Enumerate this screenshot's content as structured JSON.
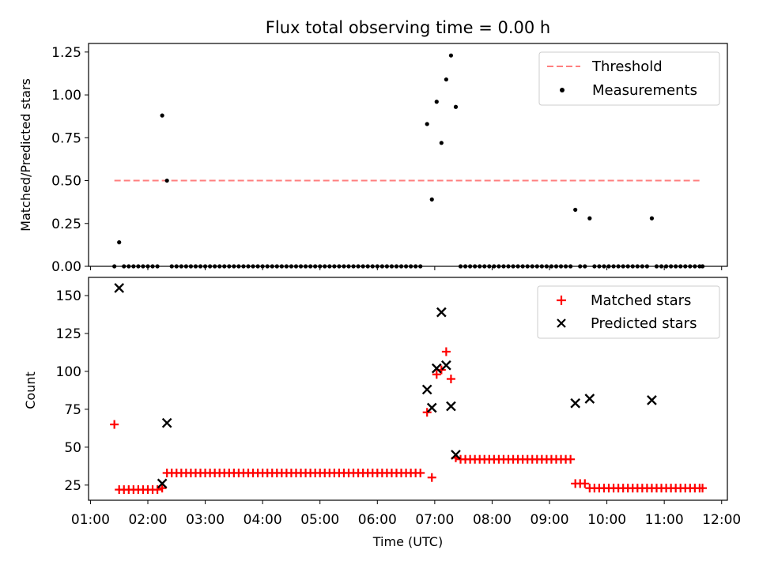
{
  "figure": {
    "title": "Flux total observing time = 0.00 h",
    "xlabel": "Time (UTC)",
    "xticks": [
      "01:00",
      "02:00",
      "03:00",
      "04:00",
      "05:00",
      "06:00",
      "07:00",
      "08:00",
      "09:00",
      "10:00",
      "11:00",
      "12:00"
    ],
    "colors": {
      "threshold": "#ff7f7f",
      "measurement": "#000000",
      "matched": "#ff0000",
      "predicted": "#000000"
    }
  },
  "chart_data": [
    {
      "type": "scatter",
      "title": "Flux total observing time = 0.00 h",
      "ylabel": "Matched/Predicted stars",
      "xlim": [
        "00:58",
        "12:06"
      ],
      "ylim": [
        0,
        1.3
      ],
      "yticks": [
        "0.00",
        "0.25",
        "0.50",
        "0.75",
        "1.00",
        "1.25"
      ],
      "legend_position": "top-right",
      "legend": [
        "Threshold",
        "Measurements"
      ],
      "threshold": {
        "name": "Threshold",
        "value": 0.5,
        "x": [
          "01:25",
          "11:40"
        ]
      },
      "measurements": {
        "name": "Measurements",
        "points": [
          [
            "01:25",
            0.0
          ],
          [
            "01:30",
            0.14
          ],
          [
            "01:35",
            0.0
          ],
          [
            "01:40",
            0.0
          ],
          [
            "01:45",
            0.0
          ],
          [
            "01:50",
            0.0
          ],
          [
            "01:55",
            0.0
          ],
          [
            "02:00",
            0.0
          ],
          [
            "02:05",
            0.0
          ],
          [
            "02:10",
            0.0
          ],
          [
            "02:15",
            0.88
          ],
          [
            "02:20",
            0.5
          ],
          [
            "02:25",
            0.0
          ],
          [
            "02:30",
            0.0
          ],
          [
            "02:35",
            0.0
          ],
          [
            "02:40",
            0.0
          ],
          [
            "02:45",
            0.0
          ],
          [
            "02:50",
            0.0
          ],
          [
            "02:55",
            0.0
          ],
          [
            "03:00",
            0.0
          ],
          [
            "03:05",
            0.0
          ],
          [
            "03:10",
            0.0
          ],
          [
            "03:15",
            0.0
          ],
          [
            "03:20",
            0.0
          ],
          [
            "03:25",
            0.0
          ],
          [
            "03:30",
            0.0
          ],
          [
            "03:35",
            0.0
          ],
          [
            "03:40",
            0.0
          ],
          [
            "03:45",
            0.0
          ],
          [
            "03:50",
            0.0
          ],
          [
            "03:55",
            0.0
          ],
          [
            "04:00",
            0.0
          ],
          [
            "04:05",
            0.0
          ],
          [
            "04:10",
            0.0
          ],
          [
            "04:15",
            0.0
          ],
          [
            "04:20",
            0.0
          ],
          [
            "04:25",
            0.0
          ],
          [
            "04:30",
            0.0
          ],
          [
            "04:35",
            0.0
          ],
          [
            "04:40",
            0.0
          ],
          [
            "04:45",
            0.0
          ],
          [
            "04:50",
            0.0
          ],
          [
            "04:55",
            0.0
          ],
          [
            "05:00",
            0.0
          ],
          [
            "05:05",
            0.0
          ],
          [
            "05:10",
            0.0
          ],
          [
            "05:15",
            0.0
          ],
          [
            "05:20",
            0.0
          ],
          [
            "05:25",
            0.0
          ],
          [
            "05:30",
            0.0
          ],
          [
            "05:35",
            0.0
          ],
          [
            "05:40",
            0.0
          ],
          [
            "05:45",
            0.0
          ],
          [
            "05:50",
            0.0
          ],
          [
            "05:55",
            0.0
          ],
          [
            "06:00",
            0.0
          ],
          [
            "06:05",
            0.0
          ],
          [
            "06:10",
            0.0
          ],
          [
            "06:15",
            0.0
          ],
          [
            "06:20",
            0.0
          ],
          [
            "06:25",
            0.0
          ],
          [
            "06:30",
            0.0
          ],
          [
            "06:35",
            0.0
          ],
          [
            "06:40",
            0.0
          ],
          [
            "06:45",
            0.0
          ],
          [
            "06:52",
            0.83
          ],
          [
            "06:57",
            0.39
          ],
          [
            "07:02",
            0.96
          ],
          [
            "07:07",
            0.72
          ],
          [
            "07:12",
            1.09
          ],
          [
            "07:17",
            1.23
          ],
          [
            "07:22",
            0.93
          ],
          [
            "07:27",
            0.0
          ],
          [
            "07:32",
            0.0
          ],
          [
            "07:37",
            0.0
          ],
          [
            "07:42",
            0.0
          ],
          [
            "07:47",
            0.0
          ],
          [
            "07:52",
            0.0
          ],
          [
            "07:57",
            0.0
          ],
          [
            "08:02",
            0.0
          ],
          [
            "08:07",
            0.0
          ],
          [
            "08:12",
            0.0
          ],
          [
            "08:17",
            0.0
          ],
          [
            "08:22",
            0.0
          ],
          [
            "08:27",
            0.0
          ],
          [
            "08:32",
            0.0
          ],
          [
            "08:37",
            0.0
          ],
          [
            "08:42",
            0.0
          ],
          [
            "08:47",
            0.0
          ],
          [
            "08:52",
            0.0
          ],
          [
            "08:57",
            0.0
          ],
          [
            "09:02",
            0.0
          ],
          [
            "09:07",
            0.0
          ],
          [
            "09:12",
            0.0
          ],
          [
            "09:17",
            0.0
          ],
          [
            "09:22",
            0.0
          ],
          [
            "09:27",
            0.33
          ],
          [
            "09:32",
            0.0
          ],
          [
            "09:37",
            0.0
          ],
          [
            "09:42",
            0.28
          ],
          [
            "09:47",
            0.0
          ],
          [
            "09:52",
            0.0
          ],
          [
            "09:57",
            0.0
          ],
          [
            "10:02",
            0.0
          ],
          [
            "10:07",
            0.0
          ],
          [
            "10:12",
            0.0
          ],
          [
            "10:17",
            0.0
          ],
          [
            "10:22",
            0.0
          ],
          [
            "10:27",
            0.0
          ],
          [
            "10:32",
            0.0
          ],
          [
            "10:37",
            0.0
          ],
          [
            "10:42",
            0.0
          ],
          [
            "10:47",
            0.28
          ],
          [
            "10:52",
            0.0
          ],
          [
            "10:57",
            0.0
          ],
          [
            "11:02",
            0.0
          ],
          [
            "11:07",
            0.0
          ],
          [
            "11:12",
            0.0
          ],
          [
            "11:17",
            0.0
          ],
          [
            "11:22",
            0.0
          ],
          [
            "11:27",
            0.0
          ],
          [
            "11:32",
            0.0
          ],
          [
            "11:37",
            0.0
          ],
          [
            "11:40",
            0.0
          ]
        ]
      }
    },
    {
      "type": "scatter",
      "ylabel": "Count",
      "xlabel": "Time (UTC)",
      "xlim": [
        "00:58",
        "12:06"
      ],
      "ylim": [
        15,
        162
      ],
      "yticks": [
        "25",
        "50",
        "75",
        "100",
        "125",
        "150"
      ],
      "legend_position": "top-right",
      "legend": [
        "Matched stars",
        "Predicted stars"
      ],
      "matched": {
        "name": "Matched stars",
        "points": [
          [
            "01:25",
            65
          ],
          [
            "01:30",
            22
          ],
          [
            "01:35",
            22
          ],
          [
            "01:40",
            22
          ],
          [
            "01:45",
            22
          ],
          [
            "01:50",
            22
          ],
          [
            "01:55",
            22
          ],
          [
            "02:00",
            22
          ],
          [
            "02:05",
            22
          ],
          [
            "02:10",
            22
          ],
          [
            "02:15",
            23
          ],
          [
            "02:20",
            33
          ],
          [
            "02:25",
            33
          ],
          [
            "02:30",
            33
          ],
          [
            "02:35",
            33
          ],
          [
            "02:40",
            33
          ],
          [
            "02:45",
            33
          ],
          [
            "02:50",
            33
          ],
          [
            "02:55",
            33
          ],
          [
            "03:00",
            33
          ],
          [
            "03:05",
            33
          ],
          [
            "03:10",
            33
          ],
          [
            "03:15",
            33
          ],
          [
            "03:20",
            33
          ],
          [
            "03:25",
            33
          ],
          [
            "03:30",
            33
          ],
          [
            "03:35",
            33
          ],
          [
            "03:40",
            33
          ],
          [
            "03:45",
            33
          ],
          [
            "03:50",
            33
          ],
          [
            "03:55",
            33
          ],
          [
            "04:00",
            33
          ],
          [
            "04:05",
            33
          ],
          [
            "04:10",
            33
          ],
          [
            "04:15",
            33
          ],
          [
            "04:20",
            33
          ],
          [
            "04:25",
            33
          ],
          [
            "04:30",
            33
          ],
          [
            "04:35",
            33
          ],
          [
            "04:40",
            33
          ],
          [
            "04:45",
            33
          ],
          [
            "04:50",
            33
          ],
          [
            "04:55",
            33
          ],
          [
            "05:00",
            33
          ],
          [
            "05:05",
            33
          ],
          [
            "05:10",
            33
          ],
          [
            "05:15",
            33
          ],
          [
            "05:20",
            33
          ],
          [
            "05:25",
            33
          ],
          [
            "05:30",
            33
          ],
          [
            "05:35",
            33
          ],
          [
            "05:40",
            33
          ],
          [
            "05:45",
            33
          ],
          [
            "05:50",
            33
          ],
          [
            "05:55",
            33
          ],
          [
            "06:00",
            33
          ],
          [
            "06:05",
            33
          ],
          [
            "06:10",
            33
          ],
          [
            "06:15",
            33
          ],
          [
            "06:20",
            33
          ],
          [
            "06:25",
            33
          ],
          [
            "06:30",
            33
          ],
          [
            "06:35",
            33
          ],
          [
            "06:40",
            33
          ],
          [
            "06:45",
            33
          ],
          [
            "06:52",
            73
          ],
          [
            "06:57",
            30
          ],
          [
            "07:02",
            98
          ],
          [
            "07:07",
            101
          ],
          [
            "07:12",
            113
          ],
          [
            "07:17",
            95
          ],
          [
            "07:22",
            43
          ],
          [
            "07:27",
            42
          ],
          [
            "07:32",
            42
          ],
          [
            "07:37",
            42
          ],
          [
            "07:42",
            42
          ],
          [
            "07:47",
            42
          ],
          [
            "07:52",
            42
          ],
          [
            "07:57",
            42
          ],
          [
            "08:02",
            42
          ],
          [
            "08:07",
            42
          ],
          [
            "08:12",
            42
          ],
          [
            "08:17",
            42
          ],
          [
            "08:22",
            42
          ],
          [
            "08:27",
            42
          ],
          [
            "08:32",
            42
          ],
          [
            "08:37",
            42
          ],
          [
            "08:42",
            42
          ],
          [
            "08:47",
            42
          ],
          [
            "08:52",
            42
          ],
          [
            "08:57",
            42
          ],
          [
            "09:02",
            42
          ],
          [
            "09:07",
            42
          ],
          [
            "09:12",
            42
          ],
          [
            "09:17",
            42
          ],
          [
            "09:22",
            42
          ],
          [
            "09:27",
            26
          ],
          [
            "09:32",
            26
          ],
          [
            "09:37",
            26
          ],
          [
            "09:42",
            23
          ],
          [
            "09:47",
            23
          ],
          [
            "09:52",
            23
          ],
          [
            "09:57",
            23
          ],
          [
            "10:02",
            23
          ],
          [
            "10:07",
            23
          ],
          [
            "10:12",
            23
          ],
          [
            "10:17",
            23
          ],
          [
            "10:22",
            23
          ],
          [
            "10:27",
            23
          ],
          [
            "10:32",
            23
          ],
          [
            "10:37",
            23
          ],
          [
            "10:42",
            23
          ],
          [
            "10:47",
            23
          ],
          [
            "10:52",
            23
          ],
          [
            "10:57",
            23
          ],
          [
            "11:02",
            23
          ],
          [
            "11:07",
            23
          ],
          [
            "11:12",
            23
          ],
          [
            "11:17",
            23
          ],
          [
            "11:22",
            23
          ],
          [
            "11:27",
            23
          ],
          [
            "11:32",
            23
          ],
          [
            "11:37",
            23
          ],
          [
            "11:40",
            23
          ]
        ]
      },
      "predicted": {
        "name": "Predicted stars",
        "points": [
          [
            "01:30",
            155
          ],
          [
            "02:15",
            26
          ],
          [
            "02:20",
            66
          ],
          [
            "06:52",
            88
          ],
          [
            "06:57",
            76
          ],
          [
            "07:02",
            102
          ],
          [
            "07:07",
            139
          ],
          [
            "07:12",
            104
          ],
          [
            "07:17",
            77
          ],
          [
            "07:22",
            45
          ],
          [
            "09:27",
            79
          ],
          [
            "09:42",
            82
          ],
          [
            "10:47",
            81
          ]
        ]
      }
    }
  ]
}
